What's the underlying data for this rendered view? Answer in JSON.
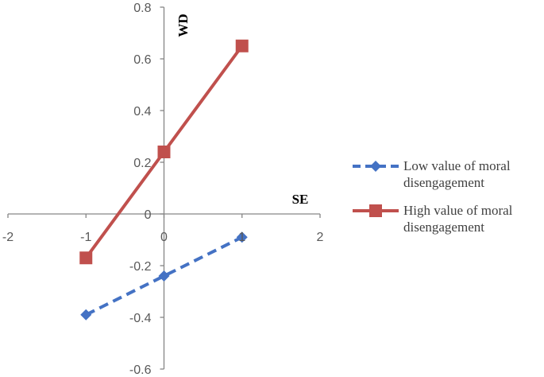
{
  "chart_data": {
    "type": "line",
    "title": "",
    "xlabel": "SE",
    "ylabel": "WD",
    "xlim": [
      -2,
      2
    ],
    "ylim": [
      -0.6,
      0.8
    ],
    "x_ticks": [
      "-2",
      "-1",
      "0",
      "1",
      "2"
    ],
    "y_ticks": [
      "-0.6",
      "-0.4",
      "-0.2",
      "0",
      "0.2",
      "0.4",
      "0.6",
      "0.8"
    ],
    "x": [
      -1,
      0,
      1
    ],
    "series": [
      {
        "name": "Low value of moral disengagement",
        "legend_lines": [
          "Low value of moral",
          "disengagement"
        ],
        "values": [
          -0.39,
          -0.24,
          -0.09
        ],
        "color": "#4472C4",
        "line_style": "dashed",
        "marker": "diamond"
      },
      {
        "name": "High value of moral disengagement",
        "legend_lines": [
          "High value of moral",
          "disengagement"
        ],
        "values": [
          -0.17,
          0.24,
          0.65
        ],
        "color": "#C0504D",
        "line_style": "solid",
        "marker": "square"
      }
    ],
    "grid": false,
    "legend_position": "right"
  }
}
